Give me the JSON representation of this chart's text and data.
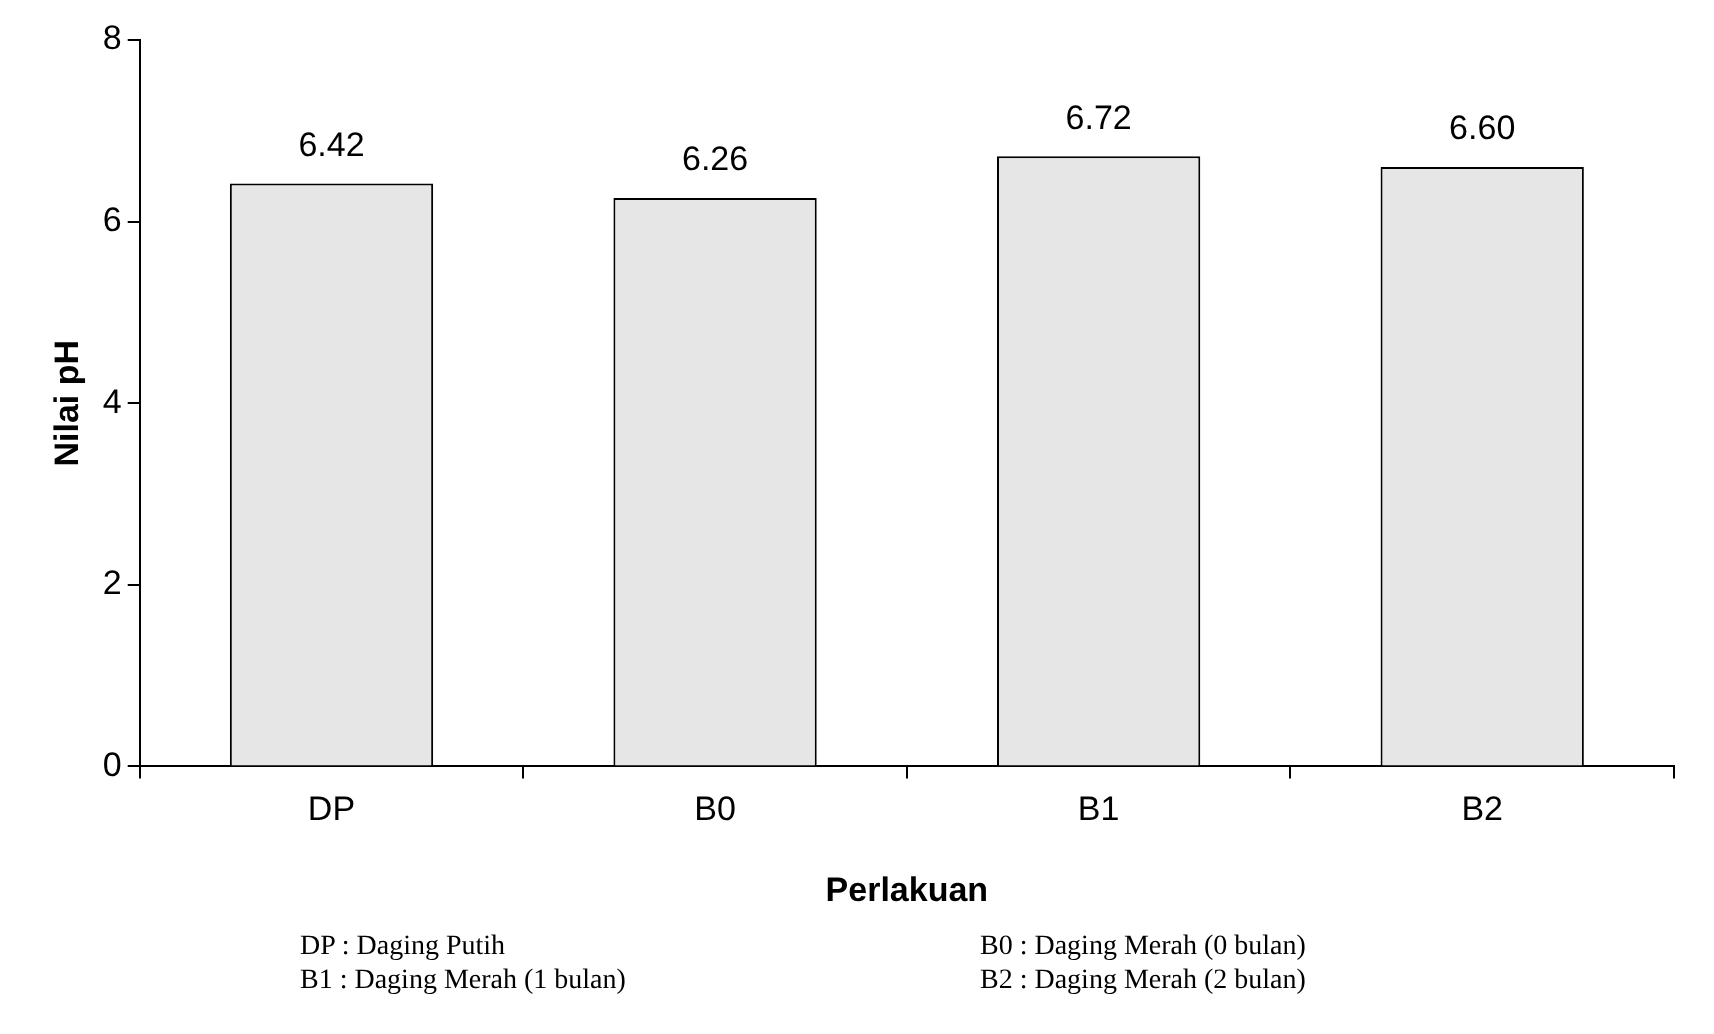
{
  "chart_data": {
    "type": "bar",
    "xlabel": "Perlakuan",
    "ylabel": "Nilai pH",
    "categories": [
      "DP",
      "B0",
      "B1",
      "B2"
    ],
    "values": [
      6.42,
      6.26,
      6.72,
      6.6
    ],
    "value_labels": [
      "6.42",
      "6.26",
      "6.72",
      "6.60"
    ],
    "color": "#e6e6e6",
    "ylim": [
      0,
      8
    ],
    "yticks": [
      0,
      2,
      4,
      6,
      8
    ],
    "grid": false,
    "legend": false,
    "annotations": [
      "DP : Daging Putih",
      "B0 : Daging Merah (0 bulan)",
      "B1 : Daging Merah (1 bulan)",
      "B2 : Daging Merah (2 bulan)"
    ]
  }
}
